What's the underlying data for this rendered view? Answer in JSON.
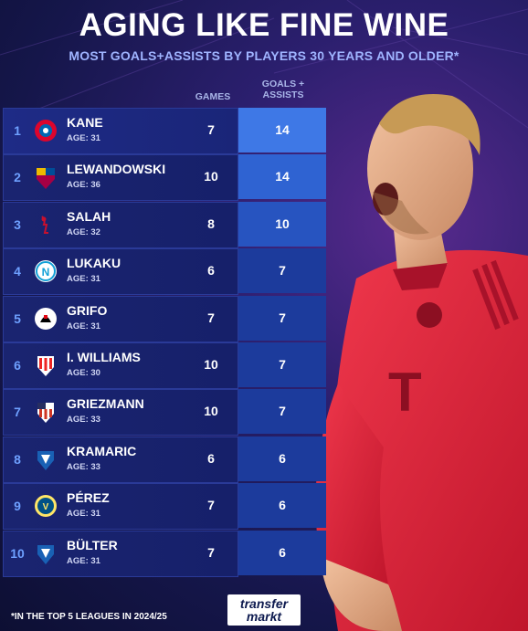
{
  "header": {
    "title": "AGING LIKE FINE WINE",
    "subtitle": "MOST GOALS+ASSISTS BY PLAYERS 30 YEARS AND OLDER*"
  },
  "columns": {
    "games": "GAMES",
    "ga_line1": "GOALS +",
    "ga_line2": "ASSISTS"
  },
  "rows": [
    {
      "rank": "1",
      "name": "KANE",
      "age": "AGE: 31",
      "games": "7",
      "ga": "14",
      "crest": "bayern-crest-icon"
    },
    {
      "rank": "2",
      "name": "LEWANDOWSKI",
      "age": "AGE: 36",
      "games": "10",
      "ga": "14",
      "crest": "barcelona-crest-icon"
    },
    {
      "rank": "3",
      "name": "SALAH",
      "age": "AGE: 32",
      "games": "8",
      "ga": "10",
      "crest": "liverpool-crest-icon"
    },
    {
      "rank": "4",
      "name": "LUKAKU",
      "age": "AGE: 31",
      "games": "6",
      "ga": "7",
      "crest": "napoli-crest-icon"
    },
    {
      "rank": "5",
      "name": "GRIFO",
      "age": "AGE: 31",
      "games": "7",
      "ga": "7",
      "crest": "freiburg-crest-icon"
    },
    {
      "rank": "6",
      "name": "I. WILLIAMS",
      "age": "AGE: 30",
      "games": "10",
      "ga": "7",
      "crest": "athletic-crest-icon"
    },
    {
      "rank": "7",
      "name": "GRIEZMANN",
      "age": "AGE: 33",
      "games": "10",
      "ga": "7",
      "crest": "atletico-crest-icon"
    },
    {
      "rank": "8",
      "name": "KRAMARIC",
      "age": "AGE: 33",
      "games": "6",
      "ga": "6",
      "crest": "hoffenheim-crest-icon"
    },
    {
      "rank": "9",
      "name": "PÉREZ",
      "age": "AGE: 31",
      "games": "7",
      "ga": "6",
      "crest": "villarreal-crest-icon"
    },
    {
      "rank": "10",
      "name": "BÜLTER",
      "age": "AGE: 31",
      "games": "7",
      "ga": "6",
      "crest": "hoffenheim-crest-icon"
    }
  ],
  "footer": {
    "note": "*IN THE TOP 5 LEAGUES IN 2024/25",
    "logo_line1": "transfer",
    "logo_line2": "markt"
  },
  "colors": {
    "background": "#1a1a55",
    "accent_blue": "#3e78e6",
    "jersey_red": "#e5243b"
  }
}
